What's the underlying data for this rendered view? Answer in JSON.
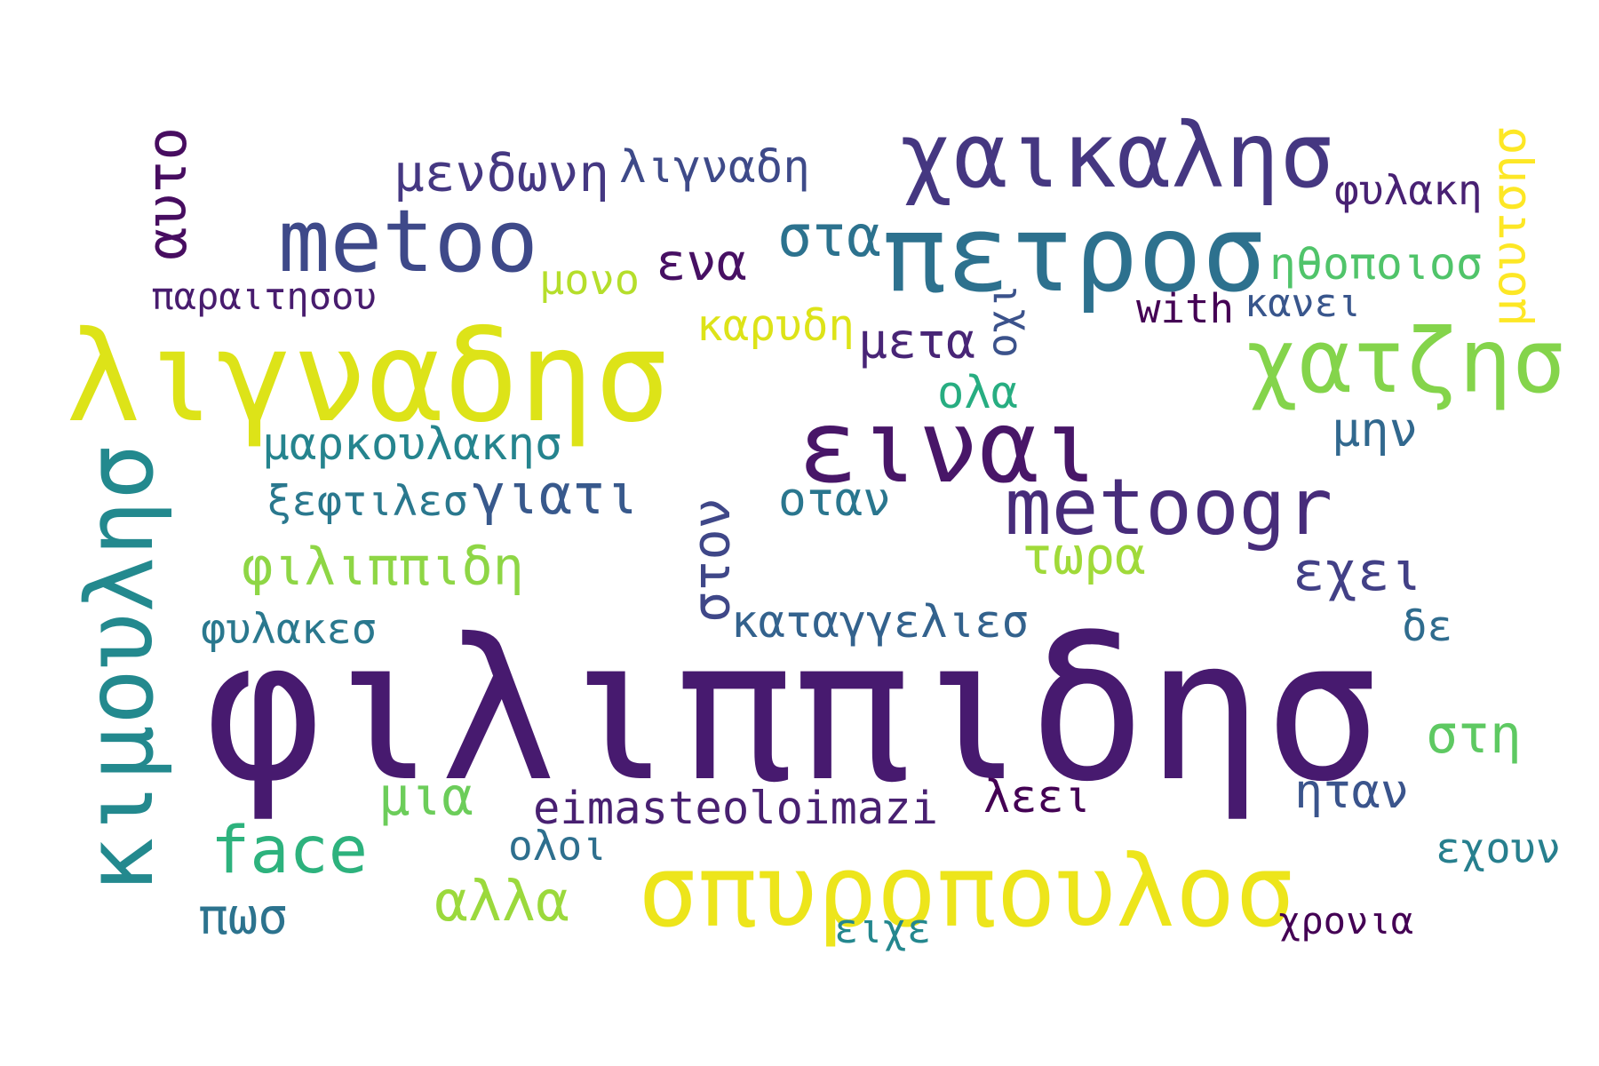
{
  "words": [
    {
      "text": "φιλιππιδησ",
      "color": "#471a6f"
    },
    {
      "text": "σπυροπουλοσ",
      "color": "#ede51b"
    },
    {
      "text": "λιγναδησ",
      "color": "#dde318"
    },
    {
      "text": "κιμουλησ",
      "color": "#23898e"
    },
    {
      "text": "χαικαλησ",
      "color": "#453781"
    },
    {
      "text": "πετροσ",
      "color": "#2d718e"
    },
    {
      "text": "ειναι",
      "color": "#481668"
    },
    {
      "text": "metoo",
      "color": "#3e4989"
    },
    {
      "text": "χατζησ",
      "color": "#84d44b"
    },
    {
      "text": "metoogr",
      "color": "#472c7a"
    },
    {
      "text": "face",
      "color": "#2db27d"
    },
    {
      "text": "αλλα",
      "color": "#9bd93c"
    },
    {
      "text": "μενδωνη",
      "color": "#453882"
    },
    {
      "text": "λιγναδη",
      "color": "#3e4a89"
    },
    {
      "text": "αυτο",
      "color": "#470d60"
    },
    {
      "text": "μουτσησ",
      "color": "#fde725"
    },
    {
      "text": "φυλακη",
      "color": "#482173"
    },
    {
      "text": "στα",
      "color": "#2c728e"
    },
    {
      "text": "ηθοποιοσ",
      "color": "#50c46a"
    },
    {
      "text": "ενα",
      "color": "#471063"
    },
    {
      "text": "μονο",
      "color": "#b5de2b"
    },
    {
      "text": "παραιτησου",
      "color": "#481c6e"
    },
    {
      "text": "καρυδη",
      "color": "#dde318"
    },
    {
      "text": "μετα",
      "color": "#482576"
    },
    {
      "text": "οχι",
      "color": "#3b528b"
    },
    {
      "text": "with",
      "color": "#440154"
    },
    {
      "text": "κανει",
      "color": "#39568c"
    },
    {
      "text": "ολα",
      "color": "#27ad81"
    },
    {
      "text": "μαρκουλακησ",
      "color": "#25848e"
    },
    {
      "text": "μην",
      "color": "#31688e"
    },
    {
      "text": "ξεφτιλεσ",
      "color": "#2a788e"
    },
    {
      "text": "γιατι",
      "color": "#38598c"
    },
    {
      "text": "οταν",
      "color": "#2a768e"
    },
    {
      "text": "στον",
      "color": "#3f4788"
    },
    {
      "text": "τωρα",
      "color": "#a0da39"
    },
    {
      "text": "φιλιππιδη",
      "color": "#8ed645"
    },
    {
      "text": "εχει",
      "color": "#424086"
    },
    {
      "text": "φυλακεσ",
      "color": "#2a788e"
    },
    {
      "text": "καταγγελιεσ",
      "color": "#33628d"
    },
    {
      "text": "δε",
      "color": "#2f6c8e"
    },
    {
      "text": "στη",
      "color": "#5ec962"
    },
    {
      "text": "μια",
      "color": "#6ccd5a"
    },
    {
      "text": "eimasteoloimazi",
      "color": "#482071"
    },
    {
      "text": "λεει",
      "color": "#440154"
    },
    {
      "text": "ηταν",
      "color": "#3a548c"
    },
    {
      "text": "ολοι",
      "color": "#2e6f8e"
    },
    {
      "text": "εχουν",
      "color": "#277f8e"
    },
    {
      "text": "πωσ",
      "color": "#2c738e"
    },
    {
      "text": "ειχε",
      "color": "#24878e"
    },
    {
      "text": "χρονια",
      "color": "#440154"
    }
  ]
}
